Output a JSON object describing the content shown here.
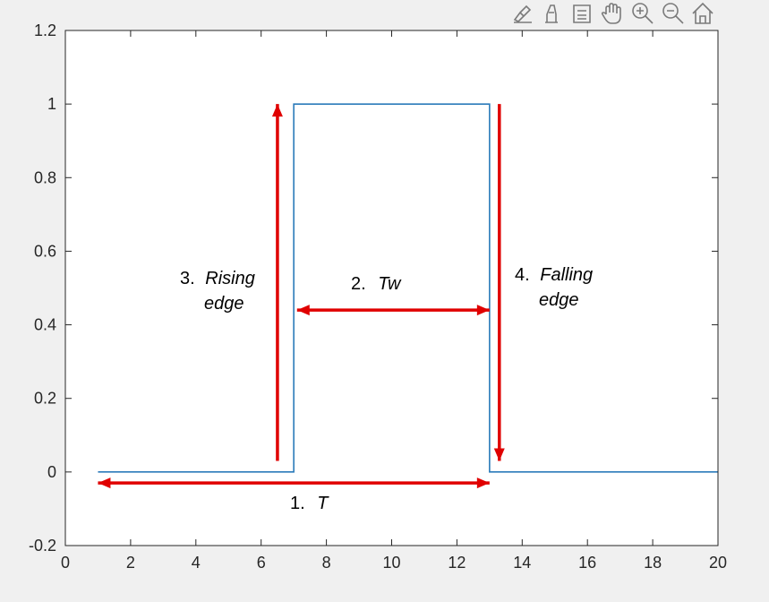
{
  "toolbar": {
    "icons": [
      "brush-icon",
      "data-tip-icon",
      "legend-icon",
      "pan-hand-icon",
      "zoom-in-icon",
      "zoom-out-icon",
      "home-icon"
    ]
  },
  "chart_data": {
    "type": "line",
    "title": "",
    "xlabel": "",
    "ylabel": "",
    "xlim": [
      0,
      20
    ],
    "ylim": [
      -0.2,
      1.2
    ],
    "x_ticks": [
      0,
      2,
      4,
      6,
      8,
      10,
      12,
      14,
      16,
      18,
      20
    ],
    "x_tick_labels": [
      "0",
      "2",
      "4",
      "6",
      "8",
      "10",
      "12",
      "14",
      "16",
      "18",
      "20"
    ],
    "y_ticks": [
      -0.2,
      0,
      0.2,
      0.4,
      0.6,
      0.8,
      1,
      1.2
    ],
    "y_tick_labels": [
      "-0.2",
      "0",
      "0.2",
      "0.4",
      "0.6",
      "0.8",
      "1",
      "1.2"
    ],
    "grid": false,
    "series": [
      {
        "color": "#2b7bba",
        "x": [
          1,
          7,
          7,
          13,
          13,
          20
        ],
        "y": [
          0,
          0,
          1,
          1,
          0,
          0
        ]
      }
    ],
    "annotations": {
      "color": "#e00000",
      "arrows": [
        {
          "id": "period",
          "from": [
            1,
            -0.03
          ],
          "to": [
            13,
            -0.03
          ],
          "heads": "both"
        },
        {
          "id": "width",
          "from": [
            7.1,
            0.44
          ],
          "to": [
            13,
            0.44
          ],
          "heads": "both"
        },
        {
          "id": "rising",
          "from": [
            6.5,
            0.03
          ],
          "to": [
            6.5,
            1
          ],
          "heads": "end"
        },
        {
          "id": "falling",
          "from": [
            13.3,
            1
          ],
          "to": [
            13.3,
            0.03
          ],
          "heads": "end"
        }
      ],
      "labels": [
        {
          "id": "period",
          "number": "1.",
          "name": "T"
        },
        {
          "id": "width",
          "number": "2.",
          "name": "Tw"
        },
        {
          "id": "rising",
          "number": "3.",
          "name": "Rising",
          "name2": "edge"
        },
        {
          "id": "falling",
          "number": "4.",
          "name": "Falling",
          "name2": "edge"
        }
      ]
    }
  }
}
